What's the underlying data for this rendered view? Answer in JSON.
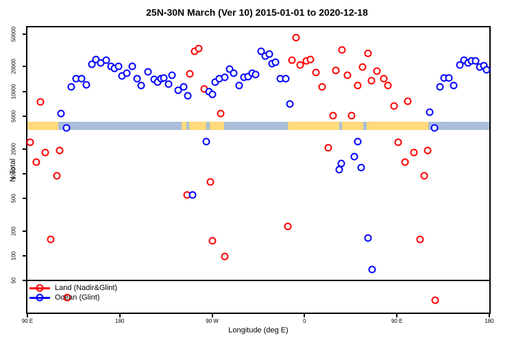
{
  "chart_data": {
    "type": "scatter",
    "title": "25N-30N March (Ver 10)   2015-01-01 to 2020-12-18",
    "xlabel": "Longitude (deg E)",
    "ylabel": "N Total",
    "y_scale": "log",
    "xlim": [
      0,
      450
    ],
    "ylim": [
      20.5,
      60000
    ],
    "grid": "off",
    "x_ticks": [
      {
        "pos": 0,
        "label": "90 E"
      },
      {
        "pos": 90,
        "label": "180"
      },
      {
        "pos": 180,
        "label": "90 W"
      },
      {
        "pos": 270,
        "label": "0"
      },
      {
        "pos": 360,
        "label": "90 E"
      },
      {
        "pos": 450,
        "label": "180"
      }
    ],
    "y_ticks": [
      {
        "value": 50,
        "label": "50"
      },
      {
        "value": 100,
        "label": "100"
      },
      {
        "value": 200,
        "label": "200"
      },
      {
        "value": 500,
        "label": "500"
      },
      {
        "value": 1000,
        "label": "1000"
      },
      {
        "value": 2000,
        "label": "2000"
      },
      {
        "value": 5000,
        "label": "5000"
      },
      {
        "value": 10000,
        "label": "10000"
      },
      {
        "value": 20000,
        "label": "20000"
      },
      {
        "value": 50000,
        "label": "50000"
      }
    ],
    "reference_line_y": 50,
    "land_ocean_band": {
      "description": "coastline strip across 25N-30N",
      "value_range": [
        3400,
        4300
      ],
      "land_color": "#FFD97B",
      "ocean_color": "#A9BED8",
      "segments": [
        {
          "type": "land",
          "from": 0,
          "to": 30
        },
        {
          "type": "ocean",
          "from": 30,
          "to": 150
        },
        {
          "type": "land",
          "from": 150,
          "to": 155
        },
        {
          "type": "ocean",
          "from": 155,
          "to": 157.5
        },
        {
          "type": "land",
          "from": 157.5,
          "to": 174
        },
        {
          "type": "ocean",
          "from": 174,
          "to": 177.5
        },
        {
          "type": "land",
          "from": 177.5,
          "to": 191.5
        },
        {
          "type": "ocean",
          "from": 191.5,
          "to": 253.5
        },
        {
          "type": "land",
          "from": 253.5,
          "to": 303.5
        },
        {
          "type": "ocean",
          "from": 303.5,
          "to": 306.5
        },
        {
          "type": "land",
          "from": 306.5,
          "to": 327
        },
        {
          "type": "ocean",
          "from": 327,
          "to": 330.5
        },
        {
          "type": "land",
          "from": 330.5,
          "to": 390.5
        },
        {
          "type": "ocean",
          "from": 390.5,
          "to": 450
        }
      ]
    },
    "legend_position": "bottom-left",
    "series": [
      {
        "name": "Land (Nadir&Glint)",
        "color": "#FF0000",
        "points": [
          [
            13,
            7400
          ],
          [
            3,
            2400
          ],
          [
            17.5,
            1800
          ],
          [
            9,
            1370
          ],
          [
            28.5,
            950
          ],
          [
            31.5,
            1900
          ],
          [
            23,
            160
          ],
          [
            39,
            31
          ],
          [
            158,
            16300
          ],
          [
            163,
            30900
          ],
          [
            167,
            32900
          ],
          [
            172.5,
            10700
          ],
          [
            178.5,
            800
          ],
          [
            155.5,
            550
          ],
          [
            180.5,
            152
          ],
          [
            192.5,
            99
          ],
          [
            188.5,
            5350
          ],
          [
            253.5,
            230
          ],
          [
            257.5,
            23800
          ],
          [
            262,
            45200
          ],
          [
            266,
            21100
          ],
          [
            271.5,
            23500
          ],
          [
            276,
            24200
          ],
          [
            281,
            17100
          ],
          [
            287,
            11400
          ],
          [
            293,
            2050
          ],
          [
            297.5,
            5080
          ],
          [
            300.5,
            17800
          ],
          [
            306.5,
            31700
          ],
          [
            311.5,
            15600
          ],
          [
            315.5,
            5080
          ],
          [
            322,
            11700
          ],
          [
            326.5,
            19700
          ],
          [
            332,
            28900
          ],
          [
            335,
            13400
          ],
          [
            340.5,
            17500
          ],
          [
            347.5,
            14200
          ],
          [
            351,
            11900
          ],
          [
            357,
            6700
          ],
          [
            361.5,
            2420
          ],
          [
            368,
            1370
          ],
          [
            370.5,
            7600
          ],
          [
            376.5,
            1800
          ],
          [
            382.5,
            160
          ],
          [
            386.5,
            950
          ],
          [
            390,
            1900
          ],
          [
            397.5,
            29
          ]
        ]
      },
      {
        "name": "Ocean (Glint)",
        "color": "#0000FF",
        "points": [
          [
            33,
            5400
          ],
          [
            38,
            3600
          ],
          [
            43,
            11300
          ],
          [
            47.5,
            14400
          ],
          [
            53,
            14400
          ],
          [
            57.5,
            12100
          ],
          [
            62.5,
            21300
          ],
          [
            66.5,
            24300
          ],
          [
            71.5,
            22000
          ],
          [
            76.5,
            23800
          ],
          [
            81.5,
            20000
          ],
          [
            85,
            19100
          ],
          [
            89,
            20300
          ],
          [
            92,
            15300
          ],
          [
            96.5,
            16800
          ],
          [
            102,
            20000
          ],
          [
            107,
            14200
          ],
          [
            110.5,
            11900
          ],
          [
            117.5,
            17400
          ],
          [
            123.5,
            14000
          ],
          [
            127,
            12900
          ],
          [
            130.5,
            14200
          ],
          [
            133,
            14500
          ],
          [
            137.5,
            12300
          ],
          [
            141,
            15600
          ],
          [
            147,
            10300
          ],
          [
            152,
            11400
          ],
          [
            156.5,
            8900
          ],
          [
            161,
            550
          ],
          [
            174,
            2440
          ],
          [
            177,
            9900
          ],
          [
            180.5,
            9150
          ],
          [
            183,
            13100
          ],
          [
            187,
            14200
          ],
          [
            192.5,
            14800
          ],
          [
            197,
            18600
          ],
          [
            201,
            16600
          ],
          [
            206.5,
            11900
          ],
          [
            211,
            14800
          ],
          [
            215,
            15200
          ],
          [
            219,
            16600
          ],
          [
            222.5,
            15900
          ],
          [
            228,
            30700
          ],
          [
            231.5,
            26700
          ],
          [
            235.5,
            28500
          ],
          [
            238.5,
            21700
          ],
          [
            241.5,
            22600
          ],
          [
            246.5,
            14200
          ],
          [
            251.5,
            14200
          ],
          [
            255.5,
            7050
          ],
          [
            303.5,
            1130
          ],
          [
            305.5,
            1320
          ],
          [
            318.5,
            1610
          ],
          [
            321.5,
            2450
          ],
          [
            325,
            1190
          ],
          [
            332,
            165
          ],
          [
            336,
            68
          ],
          [
            392,
            5550
          ],
          [
            396.5,
            3600
          ],
          [
            402,
            11400
          ],
          [
            406,
            14500
          ],
          [
            410.5,
            14500
          ],
          [
            415.5,
            11900
          ],
          [
            421,
            21100
          ],
          [
            425,
            24000
          ],
          [
            429,
            22000
          ],
          [
            432.5,
            23300
          ],
          [
            436.5,
            23700
          ],
          [
            440.5,
            19900
          ],
          [
            444.5,
            20700
          ],
          [
            447.5,
            18200
          ]
        ]
      }
    ]
  }
}
